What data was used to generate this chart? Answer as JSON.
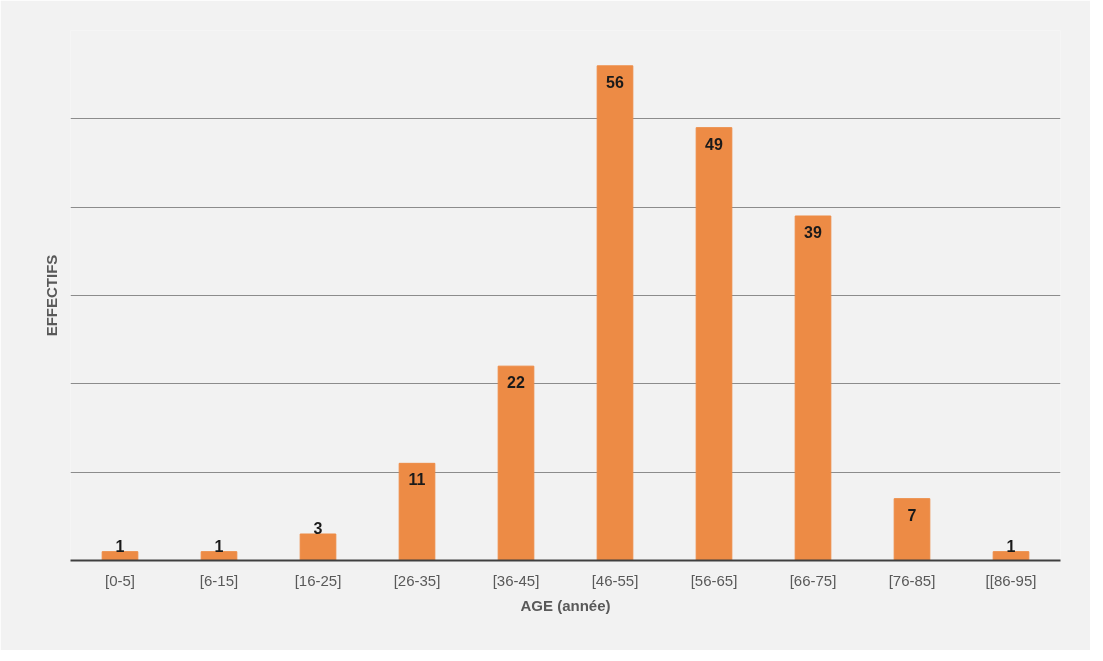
{
  "chart_data": {
    "type": "bar",
    "xlabel": "AGE (année)",
    "ylabel": "EFFECTIFS",
    "categories": [
      "[0-5]",
      "[6-15]",
      "[16-25]",
      "[26-35]",
      "[36-45]",
      "[46-55]",
      "[56-65]",
      "[66-75]",
      "[76-85]",
      "[[86-95]"
    ],
    "values": [
      1,
      1,
      3,
      11,
      22,
      56,
      49,
      39,
      7,
      1
    ],
    "color": "#ed8b45",
    "data_labels": true,
    "ylim": [
      0,
      60
    ],
    "yticks": [
      {
        "value": 0,
        "label": null
      },
      {
        "value": 10,
        "label": null
      },
      {
        "value": 20,
        "label": null
      },
      {
        "value": 30,
        "label": null
      },
      {
        "value": 40,
        "label": null
      },
      {
        "value": 50,
        "label": null
      }
    ],
    "grid": "y",
    "tick_labels": "x"
  }
}
